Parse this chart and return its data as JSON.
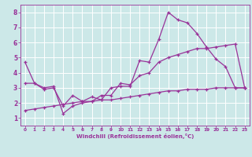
{
  "xlabel": "Windchill (Refroidissement éolien,°C)",
  "xlim": [
    -0.5,
    23.5
  ],
  "ylim": [
    0.5,
    8.5
  ],
  "yticks": [
    1,
    2,
    3,
    4,
    5,
    6,
    7,
    8
  ],
  "xticks": [
    0,
    1,
    2,
    3,
    4,
    5,
    6,
    7,
    8,
    9,
    10,
    11,
    12,
    13,
    14,
    15,
    16,
    17,
    18,
    19,
    20,
    21,
    22,
    23
  ],
  "bg_color": "#cce8e8",
  "line_color": "#993399",
  "grid_color": "#ffffff",
  "line1_x": [
    0,
    1,
    2,
    3,
    4,
    5,
    6,
    7,
    8,
    9,
    10,
    11,
    12,
    13,
    14,
    15,
    16,
    17,
    18,
    19,
    20,
    21,
    22,
    23
  ],
  "line1_y": [
    4.7,
    3.3,
    2.9,
    3.0,
    1.8,
    2.5,
    2.1,
    2.4,
    2.2,
    3.0,
    3.1,
    3.1,
    4.8,
    4.7,
    6.2,
    8.0,
    7.5,
    7.3,
    6.6,
    5.7,
    4.9,
    4.4,
    3.0,
    3.0
  ],
  "line2_x": [
    0,
    1,
    2,
    3,
    4,
    5,
    6,
    7,
    8,
    9,
    10,
    11,
    12,
    13,
    14,
    15,
    16,
    17,
    18,
    19,
    20,
    21,
    22,
    23
  ],
  "line2_y": [
    3.3,
    3.3,
    3.0,
    3.1,
    1.3,
    1.8,
    2.0,
    2.1,
    2.5,
    2.5,
    3.3,
    3.2,
    3.8,
    4.0,
    4.7,
    5.0,
    5.2,
    5.4,
    5.6,
    5.6,
    5.7,
    5.8,
    5.9,
    3.0
  ],
  "line3_x": [
    0,
    1,
    2,
    3,
    4,
    5,
    6,
    7,
    8,
    9,
    10,
    11,
    12,
    13,
    14,
    15,
    16,
    17,
    18,
    19,
    20,
    21,
    22,
    23
  ],
  "line3_y": [
    1.5,
    1.6,
    1.7,
    1.8,
    1.9,
    2.0,
    2.1,
    2.1,
    2.2,
    2.2,
    2.3,
    2.4,
    2.5,
    2.6,
    2.7,
    2.8,
    2.8,
    2.9,
    2.9,
    2.9,
    3.0,
    3.0,
    3.0,
    3.0
  ]
}
